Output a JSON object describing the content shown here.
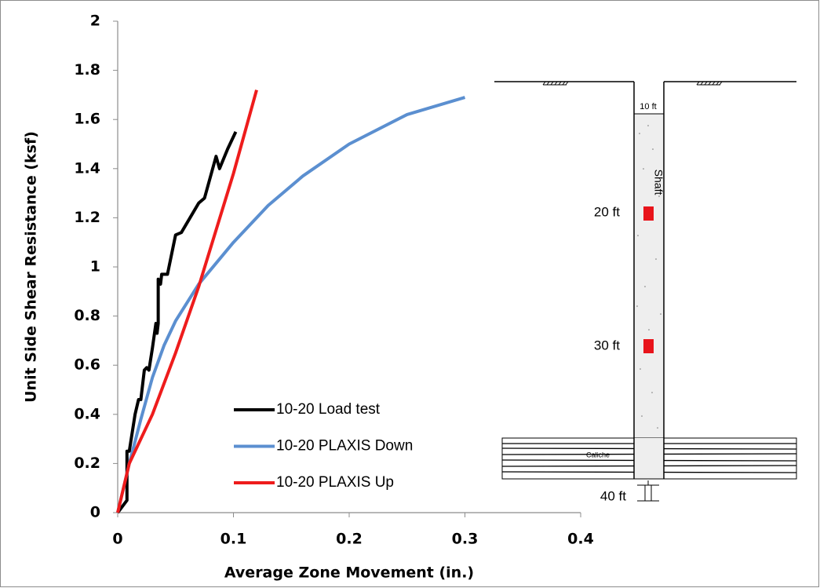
{
  "chart_data": {
    "type": "line",
    "xlabel": "Average Zone Movement (in.)",
    "ylabel": "Unit Side Shear Resistance (ksf)",
    "xlim": [
      0,
      0.4
    ],
    "xticks": [
      0,
      0.1,
      0.2,
      0.3,
      0.4
    ],
    "ylim": [
      0,
      2
    ],
    "yticks": [
      0,
      0.2,
      0.4,
      0.6,
      0.8,
      1,
      1.2,
      1.4,
      1.6,
      1.8,
      2
    ],
    "grid": false,
    "legend": "lower-left",
    "series": [
      {
        "name": "10-20 Load test",
        "color": "#000000",
        "x": [
          0,
          0.008,
          0.008,
          0.01,
          0.015,
          0.018,
          0.02,
          0.023,
          0.025,
          0.027,
          0.03,
          0.033,
          0.034,
          0.035,
          0.035,
          0.037,
          0.038,
          0.043,
          0.05,
          0.055,
          0.07,
          0.075,
          0.085,
          0.088,
          0.095,
          0.102
        ],
        "values": [
          0,
          0.05,
          0.25,
          0.25,
          0.4,
          0.46,
          0.46,
          0.58,
          0.59,
          0.58,
          0.67,
          0.77,
          0.73,
          0.77,
          0.95,
          0.93,
          0.97,
          0.97,
          1.13,
          1.14,
          1.26,
          1.28,
          1.45,
          1.4,
          1.48,
          1.55
        ]
      },
      {
        "name": "10-20 PLAXIS Down",
        "color": "#5b8fd0",
        "x": [
          0,
          0.01,
          0.02,
          0.03,
          0.04,
          0.05,
          0.07,
          0.1,
          0.13,
          0.16,
          0.2,
          0.25,
          0.3
        ],
        "values": [
          0,
          0.2,
          0.38,
          0.55,
          0.68,
          0.78,
          0.93,
          1.1,
          1.25,
          1.37,
          1.5,
          1.62,
          1.69
        ]
      },
      {
        "name": "10-20 PLAXIS Up",
        "color": "#ee1c1c",
        "x": [
          0,
          0.01,
          0.03,
          0.05,
          0.07,
          0.1,
          0.12
        ],
        "values": [
          0,
          0.2,
          0.4,
          0.65,
          0.92,
          1.38,
          1.72
        ]
      }
    ],
    "annotations": [
      "10 ft",
      "Shaft",
      "20 ft",
      "30 ft",
      "Caliche",
      "40 ft"
    ]
  }
}
